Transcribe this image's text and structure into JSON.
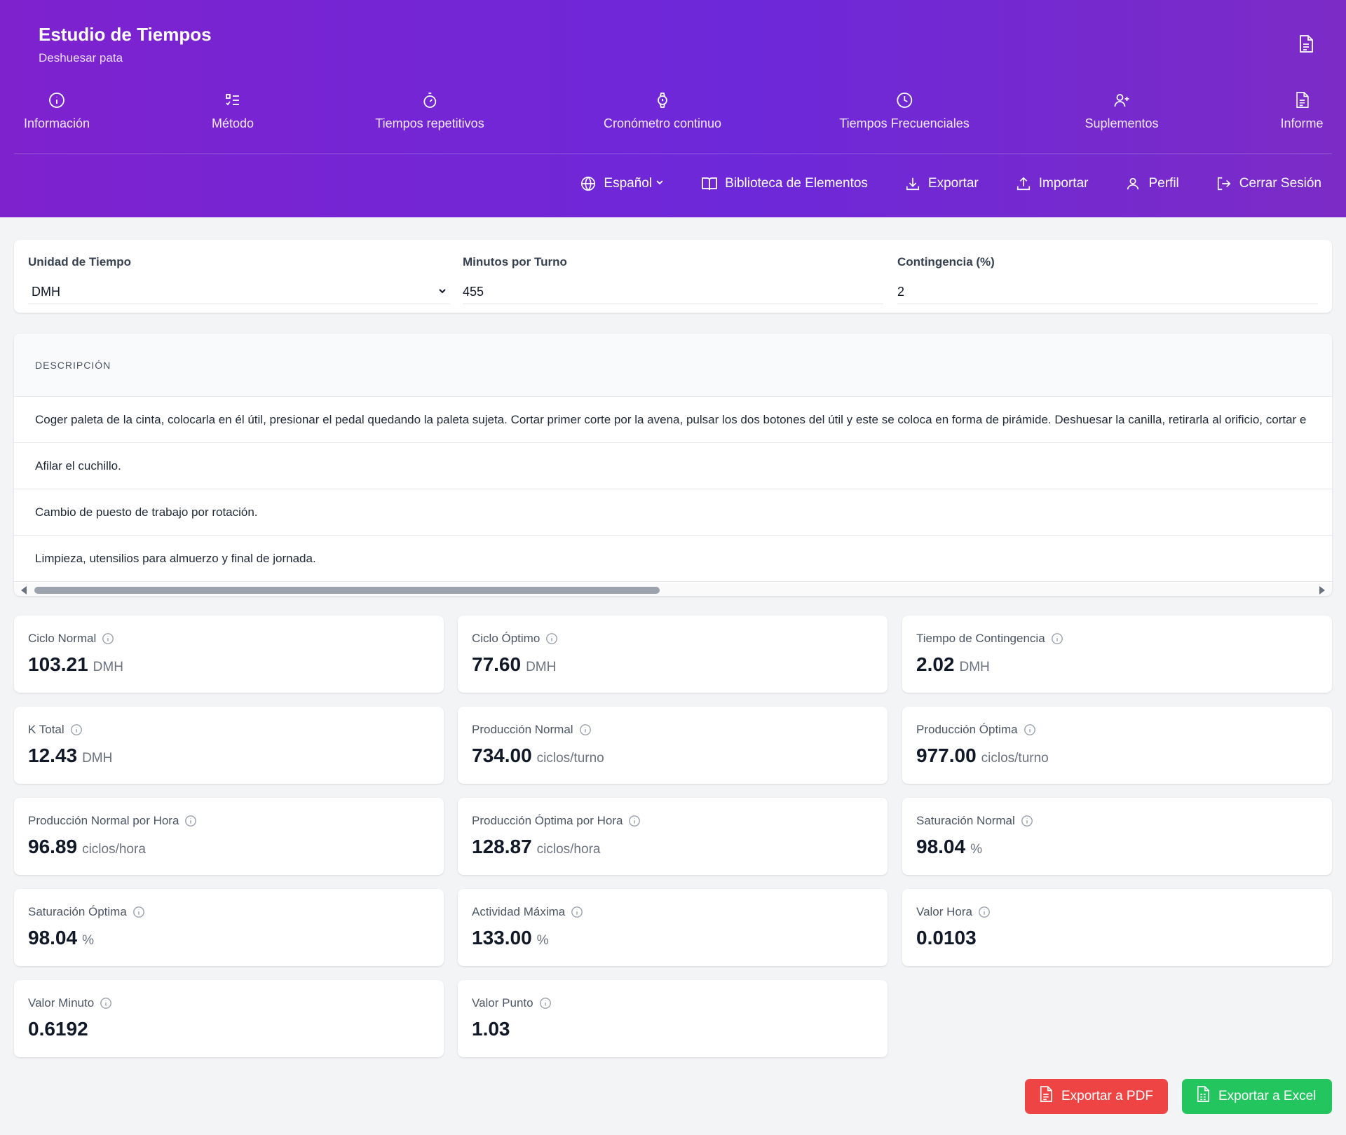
{
  "header": {
    "title": "Estudio de Tiempos",
    "subtitle": "Deshuesar pata",
    "doc_icon": "document-icon"
  },
  "nav": {
    "tabs": [
      {
        "label": "Información",
        "icon": "info-circle-icon"
      },
      {
        "label": "Método",
        "icon": "checklist-icon"
      },
      {
        "label": "Tiempos repetitivos",
        "icon": "stopwatch-icon"
      },
      {
        "label": "Cronómetro continuo",
        "icon": "watch-icon"
      },
      {
        "label": "Tiempos Frecuenciales",
        "icon": "clock-icon"
      },
      {
        "label": "Suplementos",
        "icon": "user-plus-icon"
      },
      {
        "label": "Informe",
        "icon": "document-icon"
      }
    ]
  },
  "toolbar": {
    "language": "Español",
    "library": "Biblioteca de Elementos",
    "export": "Exportar",
    "import": "Importar",
    "profile": "Perfil",
    "logout": "Cerrar Sesión"
  },
  "settings": {
    "time_unit_label": "Unidad de Tiempo",
    "time_unit_value": "DMH",
    "minutes_label": "Minutos por Turno",
    "minutes_value": "455",
    "contingency_label": "Contingencia (%)",
    "contingency_value": "2"
  },
  "description": {
    "header": "DESCRIPCIÓN",
    "rows": [
      "Coger paleta de la cinta, colocarla en él útil, presionar el pedal quedando la paleta sujeta. Cortar primer corte por la avena, pulsar los dos botones del útil y este se coloca en forma de pirámide. Deshuesar la canilla, retirarla al orificio, cortar e",
      "Afilar el cuchillo.",
      "Cambio de puesto de trabajo por rotación.",
      "Limpieza, utensilios para almuerzo y final de jornada."
    ]
  },
  "metrics": [
    {
      "label": "Ciclo Normal",
      "value": "103.21",
      "unit": "DMH"
    },
    {
      "label": "Ciclo Óptimo",
      "value": "77.60",
      "unit": "DMH"
    },
    {
      "label": "Tiempo de Contingencia",
      "value": "2.02",
      "unit": "DMH"
    },
    {
      "label": "K Total",
      "value": "12.43",
      "unit": "DMH"
    },
    {
      "label": "Producción Normal",
      "value": "734.00",
      "unit": "ciclos/turno"
    },
    {
      "label": "Producción Óptima",
      "value": "977.00",
      "unit": "ciclos/turno"
    },
    {
      "label": "Producción Normal por Hora",
      "value": "96.89",
      "unit": "ciclos/hora"
    },
    {
      "label": "Producción Óptima por Hora",
      "value": "128.87",
      "unit": "ciclos/hora"
    },
    {
      "label": "Saturación Normal",
      "value": "98.04",
      "unit": "%"
    },
    {
      "label": "Saturación Óptima",
      "value": "98.04",
      "unit": "%"
    },
    {
      "label": "Actividad Máxima",
      "value": "133.00",
      "unit": "%"
    },
    {
      "label": "Valor Hora",
      "value": "0.0103",
      "unit": ""
    },
    {
      "label": "Valor Minuto",
      "value": "0.6192",
      "unit": ""
    },
    {
      "label": "Valor Punto",
      "value": "1.03",
      "unit": ""
    }
  ],
  "actions": {
    "pdf": "Exportar a PDF",
    "excel": "Exportar a Excel"
  },
  "colors": {
    "header_gradient_start": "#7e22ce",
    "header_gradient_end": "#6d28d9",
    "pdf_button": "#ef4444",
    "excel_button": "#22c55e"
  }
}
